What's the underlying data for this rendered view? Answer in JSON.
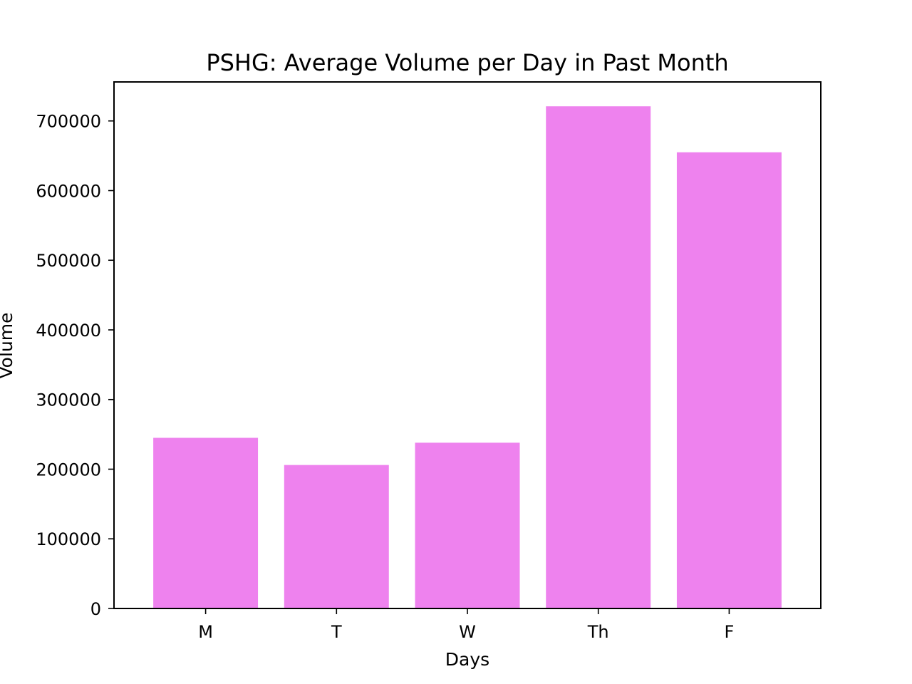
{
  "chart_data": {
    "type": "bar",
    "title": "PSHG: Average Volume per Day in Past Month",
    "xlabel": "Days",
    "ylabel": "Volume",
    "categories": [
      "M",
      "T",
      "W",
      "Th",
      "F"
    ],
    "values": [
      245000,
      206000,
      238000,
      721000,
      655000
    ],
    "ylim": [
      0,
      756000
    ],
    "yticks": [
      0,
      100000,
      200000,
      300000,
      400000,
      500000,
      600000,
      700000
    ],
    "ytick_labels": [
      "0",
      "100000",
      "200000",
      "300000",
      "400000",
      "500000",
      "600000",
      "700000"
    ],
    "bar_color": "#ee82ee",
    "grid": false,
    "legend": "none"
  }
}
